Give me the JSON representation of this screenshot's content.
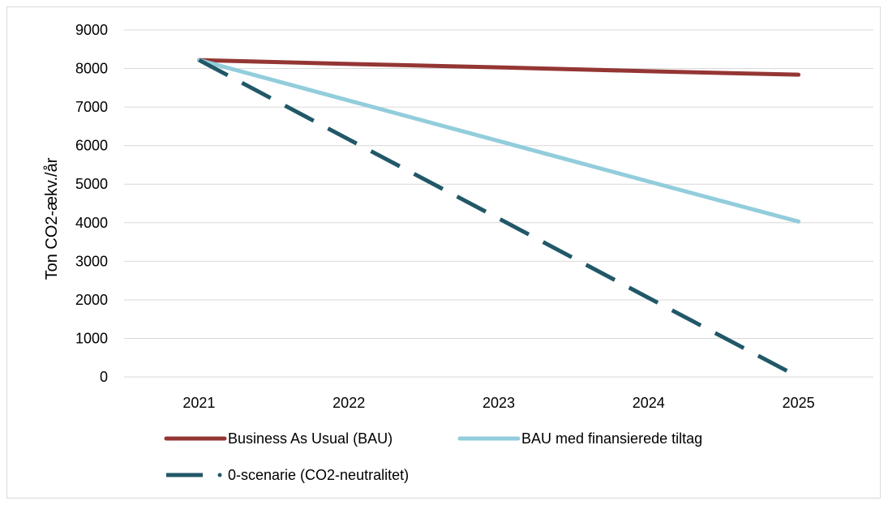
{
  "chart_data": {
    "type": "line",
    "title": "",
    "xlabel": "",
    "ylabel": "Ton CO2-ækv./år",
    "categories": [
      "2021",
      "2022",
      "2023",
      "2024",
      "2025"
    ],
    "ylim": [
      0,
      9000
    ],
    "yticks": [
      0,
      1000,
      2000,
      3000,
      4000,
      5000,
      6000,
      7000,
      8000,
      9000
    ],
    "grid": true,
    "legend_position": "bottom",
    "series": [
      {
        "name": "Business As Usual (BAU)",
        "values": [
          8220,
          8120,
          8030,
          7930,
          7840
        ],
        "color": "#943634",
        "style": "solid"
      },
      {
        "name": "BAU med finansierede tiltag",
        "values": [
          8220,
          7170,
          6120,
          5070,
          4030
        ],
        "color": "#92CDDC",
        "style": "solid"
      },
      {
        "name": "0-scenarie (CO2-neutralitet)",
        "values": [
          8220,
          6160,
          4110,
          2050,
          0
        ],
        "color": "#215868",
        "style": "dashed"
      }
    ]
  }
}
